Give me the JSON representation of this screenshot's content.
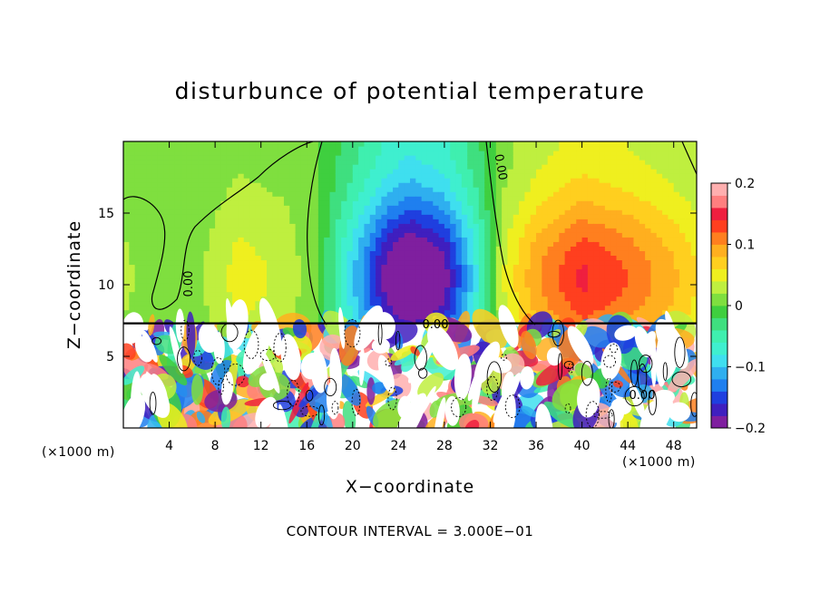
{
  "chart_data": {
    "type": "heatmap",
    "title": "disturbunce of potential temperature",
    "xlabel": "X−coordinate",
    "ylabel": "Z−coordinate",
    "x_unit_left": "(×1000 m)",
    "x_unit_right": "(×1000 m)",
    "footnote": "CONTOUR INTERVAL = 3.000E−01",
    "xlim": [
      0,
      50
    ],
    "ylim": [
      0,
      20
    ],
    "x_ticks": [
      4,
      8,
      12,
      16,
      20,
      24,
      28,
      32,
      36,
      40,
      44,
      48
    ],
    "y_ticks": [
      5,
      10,
      15
    ],
    "contour_labels": [
      "0.00",
      "0.00",
      "0.00",
      "0.00"
    ],
    "colorbar": {
      "min": -0.2,
      "max": 0.2,
      "tick_values": [
        -0.2,
        -0.1,
        0,
        0.1,
        0.2
      ],
      "tick_labels": [
        "−0.2",
        "−0.1",
        "0",
        "0.1",
        "0.2"
      ],
      "colors": [
        "#7f1f9f",
        "#3f1fbf",
        "#1f3fdf",
        "#1f7fef",
        "#2fafef",
        "#3fdfef",
        "#3fefcf",
        "#3fefaf",
        "#3fdf7f",
        "#3fcf3f",
        "#7fdf3f",
        "#bfef3f",
        "#efef1f",
        "#ffcf1f",
        "#ffaf1f",
        "#ff7f1f",
        "#ff3f1f",
        "#ef1f3f",
        "#ff7f7f",
        "#ffafaf"
      ]
    },
    "upper_layer": {
      "z_top_of_turbulent_layer": 7.3,
      "columns": [
        {
          "x": 0,
          "value": 0.02
        },
        {
          "x": 5,
          "value": 0.0
        },
        {
          "x": 10,
          "value": 0.04
        },
        {
          "x": 14,
          "value": 0.03
        },
        {
          "x": 17,
          "value": 0.0
        },
        {
          "x": 20,
          "value": -0.08
        },
        {
          "x": 23,
          "value": -0.16
        },
        {
          "x": 25,
          "value": -0.19
        },
        {
          "x": 28,
          "value": -0.16
        },
        {
          "x": 31,
          "value": -0.06
        },
        {
          "x": 33,
          "value": 0.03
        },
        {
          "x": 36,
          "value": 0.08
        },
        {
          "x": 40,
          "value": 0.12
        },
        {
          "x": 44,
          "value": 0.1
        },
        {
          "x": 48,
          "value": 0.07
        },
        {
          "x": 50,
          "value": 0.05
        }
      ]
    },
    "lower_layer": {
      "range": [
        -0.2,
        0.2
      ],
      "description_values": [
        0.2,
        -0.2,
        0.1,
        -0.1,
        0
      ]
    }
  }
}
